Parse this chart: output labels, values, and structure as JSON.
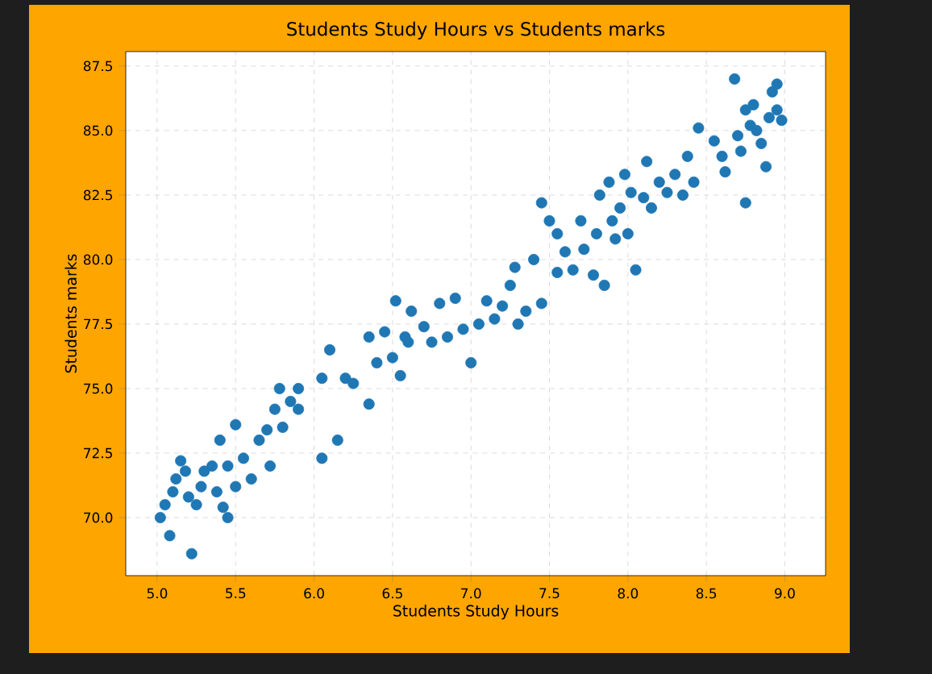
{
  "chart_data": {
    "type": "scatter",
    "title": "Students Study Hours vs Students marks",
    "xlabel": "Students Study Hours",
    "ylabel": "Students marks",
    "x": [
      5.02,
      5.05,
      5.08,
      5.1,
      5.12,
      5.15,
      5.18,
      5.2,
      5.22,
      5.25,
      5.28,
      5.3,
      5.35,
      5.38,
      5.4,
      5.42,
      5.45,
      5.45,
      5.5,
      5.5,
      5.55,
      5.6,
      5.65,
      5.7,
      5.72,
      5.75,
      5.78,
      5.8,
      5.85,
      5.9,
      5.9,
      6.05,
      6.05,
      6.1,
      6.15,
      6.2,
      6.25,
      6.35,
      6.35,
      6.4,
      6.45,
      6.5,
      6.52,
      6.55,
      6.58,
      6.6,
      6.62,
      6.7,
      6.75,
      6.8,
      6.85,
      6.9,
      6.95,
      7.0,
      7.05,
      7.1,
      7.15,
      7.2,
      7.25,
      7.28,
      7.3,
      7.35,
      7.4,
      7.45,
      7.45,
      7.5,
      7.55,
      7.55,
      7.6,
      7.65,
      7.7,
      7.72,
      7.78,
      7.8,
      7.82,
      7.85,
      7.88,
      7.9,
      7.92,
      7.95,
      7.98,
      8.0,
      8.02,
      8.05,
      8.1,
      8.12,
      8.15,
      8.2,
      8.25,
      8.3,
      8.35,
      8.38,
      8.42,
      8.45,
      8.55,
      8.6,
      8.62,
      8.68,
      8.7,
      8.72,
      8.75,
      8.75,
      8.78,
      8.8,
      8.82,
      8.85,
      8.88,
      8.9,
      8.92,
      8.95,
      8.95,
      8.98
    ],
    "series": [
      {
        "color": "#1f77b4",
        "values": [
          70.0,
          70.5,
          69.3,
          71.0,
          71.5,
          72.2,
          71.8,
          70.8,
          68.6,
          70.5,
          71.2,
          71.8,
          72.0,
          71.0,
          73.0,
          70.4,
          70.0,
          72.0,
          73.6,
          71.2,
          72.3,
          71.5,
          73.0,
          73.4,
          72.0,
          74.2,
          75.0,
          73.5,
          74.5,
          74.2,
          75.0,
          72.3,
          75.4,
          76.5,
          73.0,
          75.4,
          75.2,
          74.4,
          77.0,
          76.0,
          77.2,
          76.2,
          78.4,
          75.5,
          77.0,
          76.8,
          78.0,
          77.4,
          76.8,
          78.3,
          77.0,
          78.5,
          77.3,
          76.0,
          77.5,
          78.4,
          77.7,
          78.2,
          79.0,
          79.7,
          77.5,
          78.0,
          80.0,
          78.3,
          82.2,
          81.5,
          81.0,
          79.5,
          80.3,
          79.6,
          81.5,
          80.4,
          79.4,
          81.0,
          82.5,
          79.0,
          83.0,
          81.5,
          80.8,
          82.0,
          83.3,
          81.0,
          82.6,
          79.6,
          82.4,
          83.8,
          82.0,
          83.0,
          82.6,
          83.3,
          82.5,
          84.0,
          83.0,
          85.1,
          84.6,
          84.0,
          83.4,
          87.0,
          84.8,
          84.2,
          82.2,
          85.8,
          85.2,
          86.0,
          85.0,
          84.5,
          83.6,
          85.5,
          86.5,
          86.8,
          85.8,
          85.4
        ]
      }
    ],
    "grid": true,
    "xlim": [
      4.8,
      9.26
    ],
    "ylim": [
      67.75,
      88.06
    ],
    "xticks": [
      {
        "value": 5,
        "label": "5.0"
      },
      {
        "value": 5.5,
        "label": "5.5"
      },
      {
        "value": 6,
        "label": "6.0"
      },
      {
        "value": 6.5,
        "label": "6.5"
      },
      {
        "value": 7,
        "label": "7.0"
      },
      {
        "value": 7.5,
        "label": "7.5"
      },
      {
        "value": 8,
        "label": "8.0"
      },
      {
        "value": 8.5,
        "label": "8.5"
      },
      {
        "value": 9,
        "label": "9.0"
      }
    ],
    "yticks": [
      {
        "value": 70,
        "label": "70.0"
      },
      {
        "value": 72.5,
        "label": "72.5"
      },
      {
        "value": 75,
        "label": "75.0"
      },
      {
        "value": 77.5,
        "label": "77.5"
      },
      {
        "value": 80,
        "label": "80.0"
      },
      {
        "value": 82.5,
        "label": "82.5"
      },
      {
        "value": 85,
        "label": "85.0"
      },
      {
        "value": 87.5,
        "label": "87.5"
      }
    ]
  }
}
